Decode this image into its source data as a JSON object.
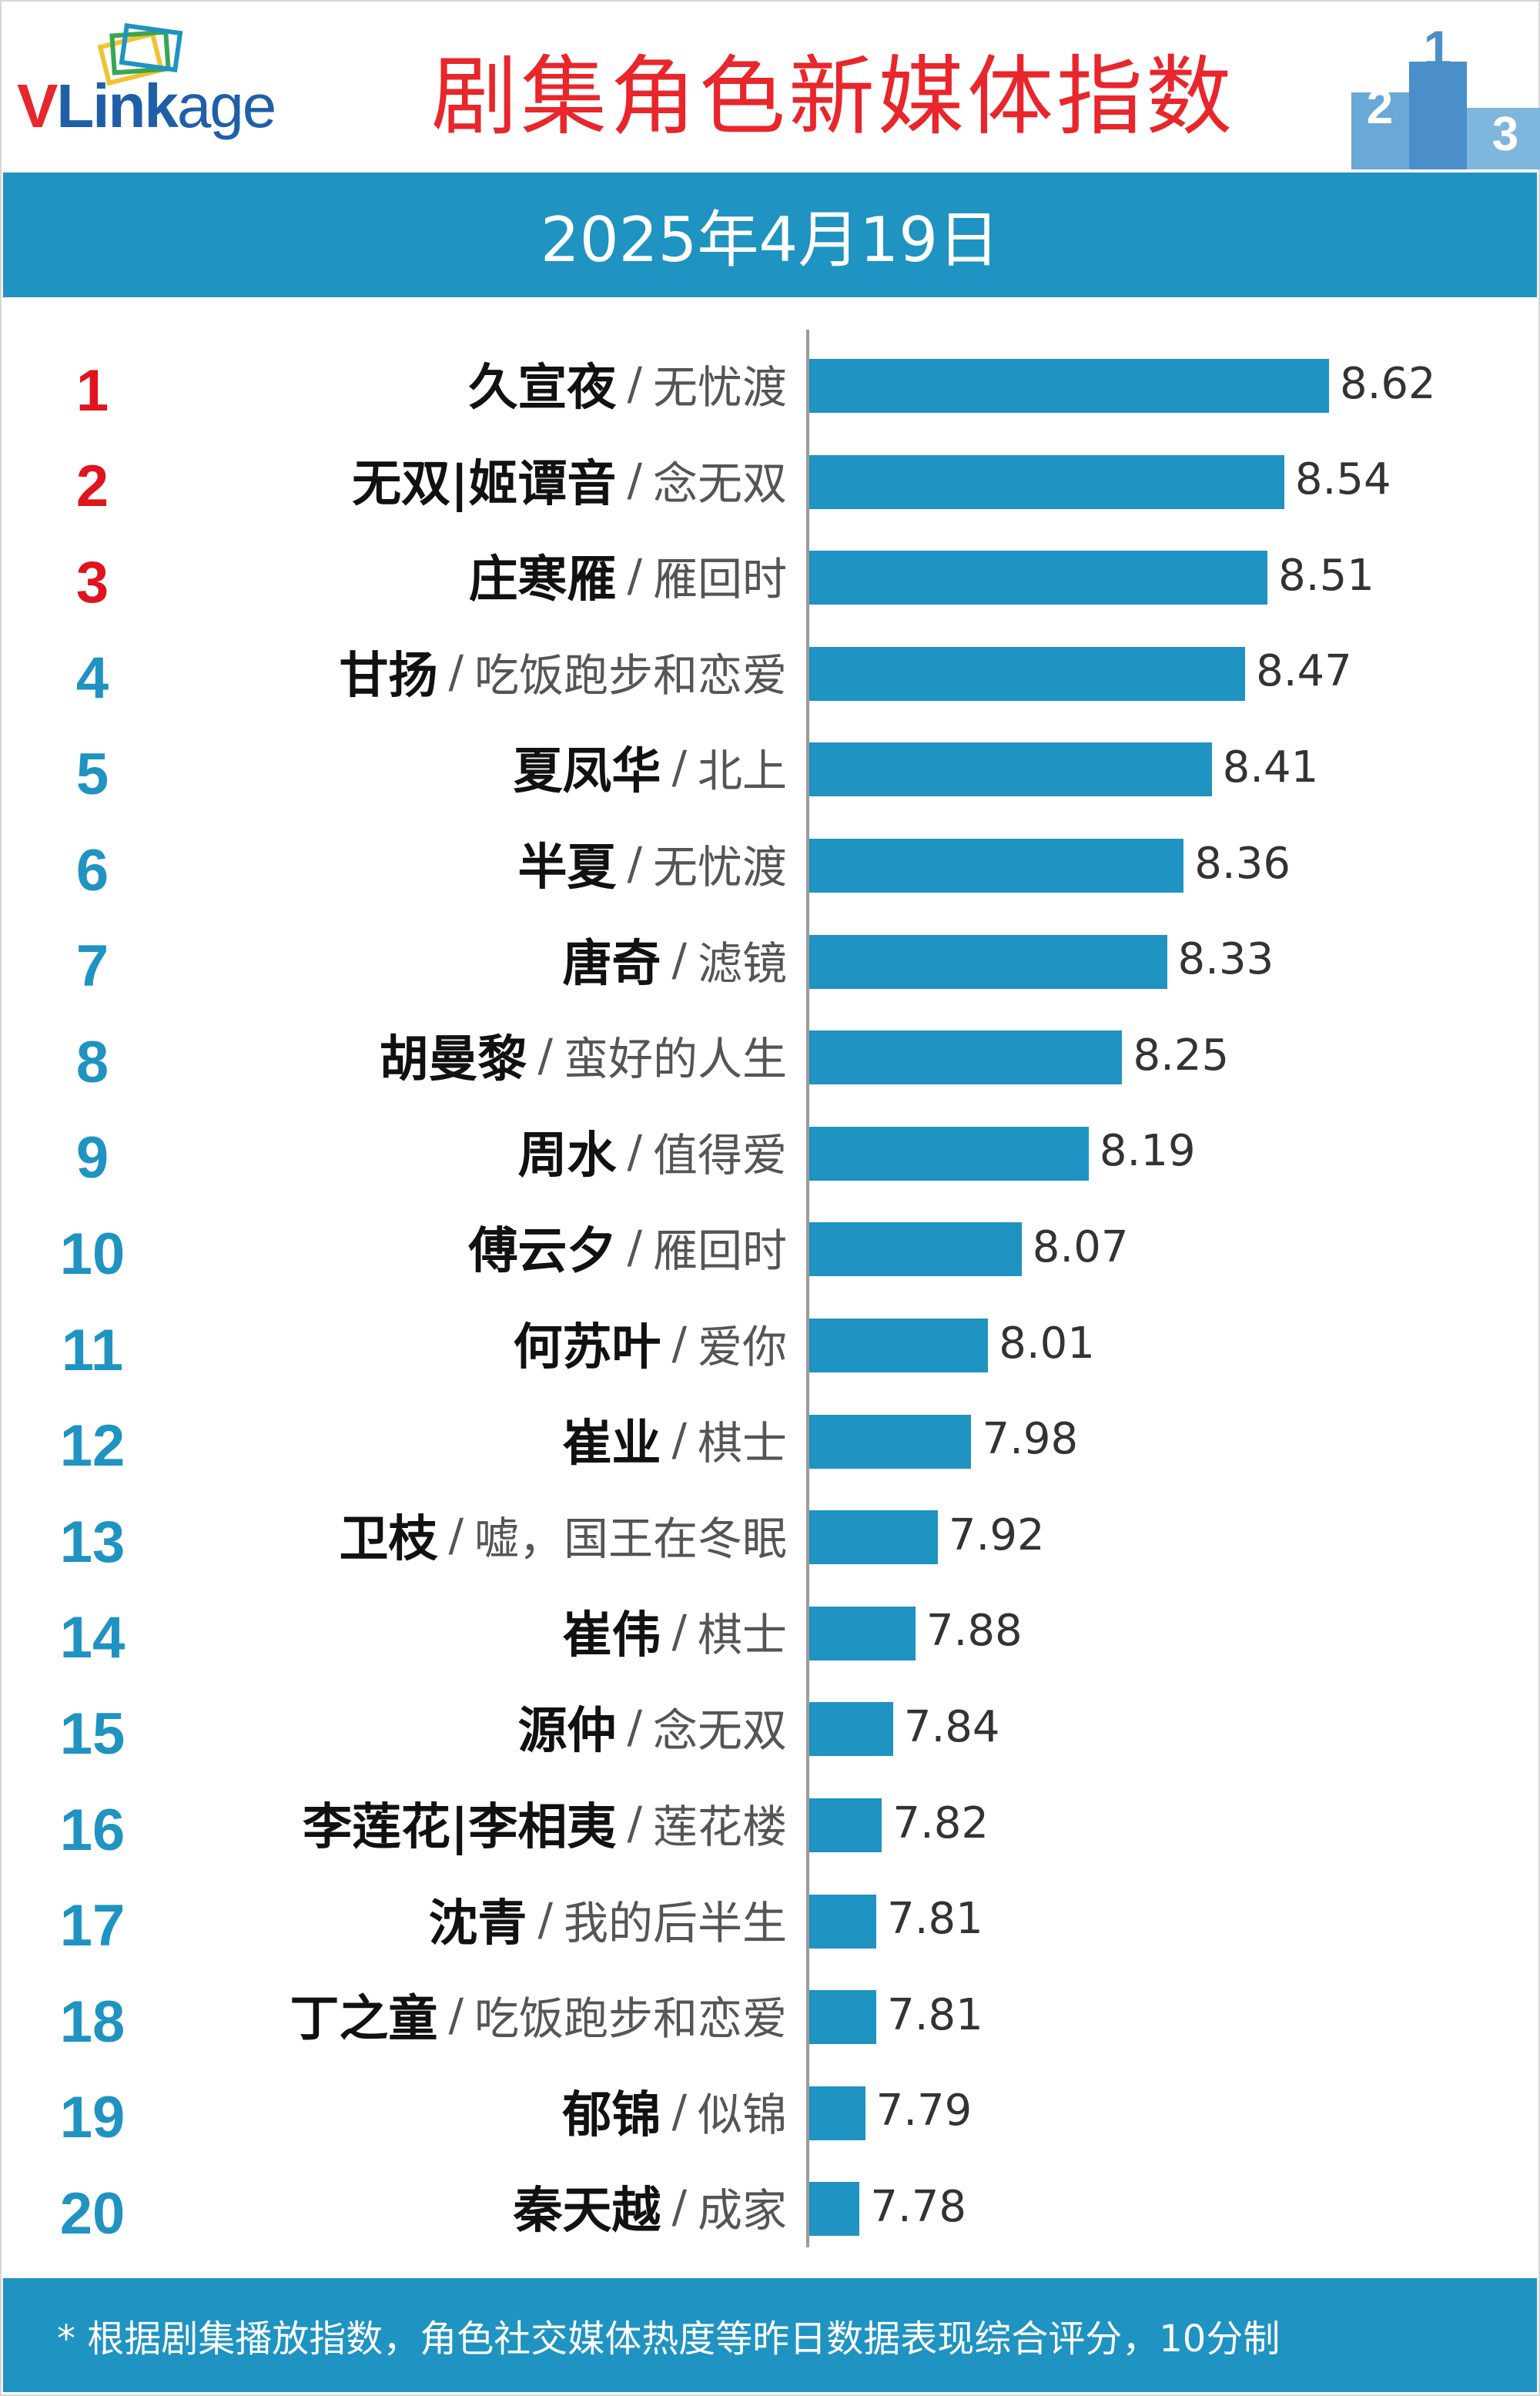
{
  "header": {
    "logo": {
      "part1": "V",
      "part2": "Link",
      "part3": "age"
    },
    "title": "剧集角色新媒体指数",
    "podium_ranks": [
      "2",
      "1",
      "3"
    ]
  },
  "date": "2025年4月19日",
  "colors": {
    "bar": "#1f93c1",
    "top_rank": "#e0141e",
    "rank": "#1f93c1",
    "title": "#e8262b"
  },
  "footer": {
    "note": "* 根据剧集播放指数，角色社交媒体热度等昨日数据表现综合评分，10分制"
  },
  "chart_data": {
    "type": "bar",
    "orientation": "horizontal",
    "title": "剧集角色新媒体指数",
    "xlim": [
      0,
      10
    ],
    "series": [
      {
        "name": "指数",
        "values": [
          8.62,
          8.54,
          8.51,
          8.47,
          8.41,
          8.36,
          8.33,
          8.25,
          8.19,
          8.07,
          8.01,
          7.98,
          7.92,
          7.88,
          7.84,
          7.82,
          7.81,
          7.81,
          7.79,
          7.78
        ]
      }
    ],
    "rows": [
      {
        "rank": "1",
        "character": "久宣夜",
        "drama": "无忧渡",
        "value": 8.62,
        "value_label": "8.62"
      },
      {
        "rank": "2",
        "character": "无双|姬谭音",
        "drama": "念无双",
        "value": 8.54,
        "value_label": "8.54"
      },
      {
        "rank": "3",
        "character": "庄寒雁",
        "drama": "雁回时",
        "value": 8.51,
        "value_label": "8.51"
      },
      {
        "rank": "4",
        "character": "甘扬",
        "drama": "吃饭跑步和恋爱",
        "value": 8.47,
        "value_label": "8.47"
      },
      {
        "rank": "5",
        "character": "夏凤华",
        "drama": "北上",
        "value": 8.41,
        "value_label": "8.41"
      },
      {
        "rank": "6",
        "character": "半夏",
        "drama": "无忧渡",
        "value": 8.36,
        "value_label": "8.36"
      },
      {
        "rank": "7",
        "character": "唐奇",
        "drama": "滤镜",
        "value": 8.33,
        "value_label": "8.33"
      },
      {
        "rank": "8",
        "character": "胡曼黎",
        "drama": "蛮好的人生",
        "value": 8.25,
        "value_label": "8.25"
      },
      {
        "rank": "9",
        "character": "周水",
        "drama": "值得爱",
        "value": 8.19,
        "value_label": "8.19"
      },
      {
        "rank": "10",
        "character": "傅云夕",
        "drama": "雁回时",
        "value": 8.07,
        "value_label": "8.07"
      },
      {
        "rank": "11",
        "character": "何苏叶",
        "drama": "爱你",
        "value": 8.01,
        "value_label": "8.01"
      },
      {
        "rank": "12",
        "character": "崔业",
        "drama": "棋士",
        "value": 7.98,
        "value_label": "7.98"
      },
      {
        "rank": "13",
        "character": "卫枝",
        "drama": "嘘，国王在冬眠",
        "value": 7.92,
        "value_label": "7.92"
      },
      {
        "rank": "14",
        "character": "崔伟",
        "drama": "棋士",
        "value": 7.88,
        "value_label": "7.88"
      },
      {
        "rank": "15",
        "character": "源仲",
        "drama": "念无双",
        "value": 7.84,
        "value_label": "7.84"
      },
      {
        "rank": "16",
        "character": "李莲花|李相夷",
        "drama": "莲花楼",
        "value": 7.82,
        "value_label": "7.82"
      },
      {
        "rank": "17",
        "character": "沈青",
        "drama": "我的后半生",
        "value": 7.81,
        "value_label": "7.81"
      },
      {
        "rank": "18",
        "character": "丁之童",
        "drama": "吃饭跑步和恋爱",
        "value": 7.81,
        "value_label": "7.81"
      },
      {
        "rank": "19",
        "character": "郁锦",
        "drama": "似锦",
        "value": 7.79,
        "value_label": "7.79"
      },
      {
        "rank": "20",
        "character": "秦天越",
        "drama": "成家",
        "value": 7.78,
        "value_label": "7.78"
      }
    ]
  }
}
